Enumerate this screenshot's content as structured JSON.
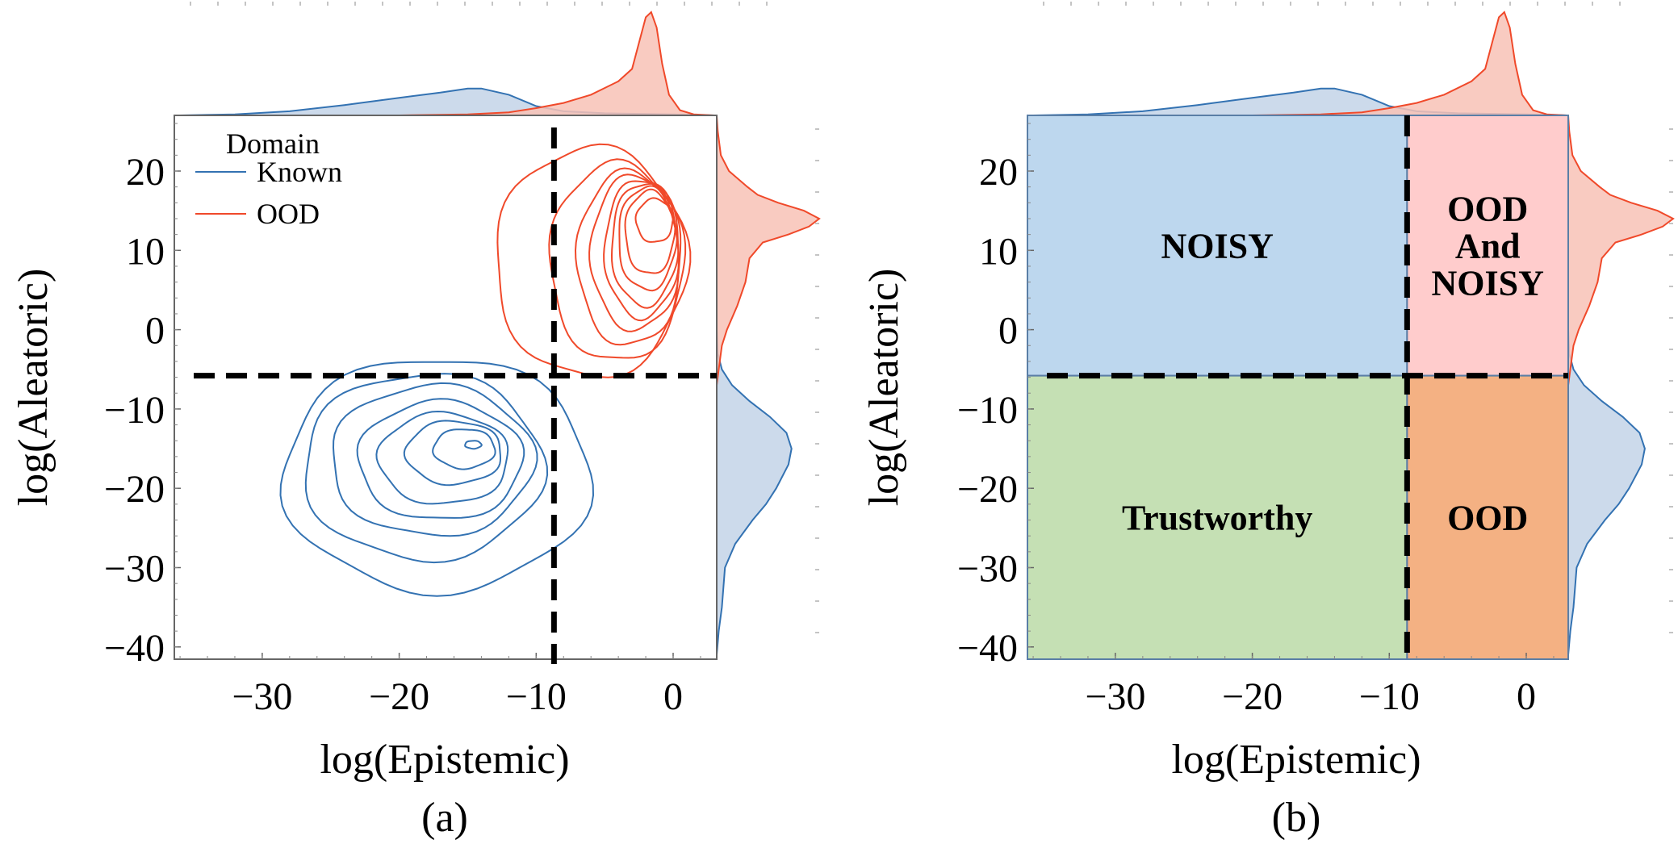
{
  "colors": {
    "known": "#3372b2",
    "known_fill": "#c3d4e8",
    "ood": "#f0492a",
    "ood_fill": "#f8c2b6",
    "threshold": "#000000",
    "region_noisy": "#bdd7ee",
    "region_ood_noisy": "#ffcccc",
    "region_trustworthy": "#c5e0b4",
    "region_ood": "#f4b183",
    "region_border": "#5a7ea6"
  },
  "chart_data": [
    {
      "type": "contour",
      "panel_label": "(a)",
      "xlabel": "log(Epistemic)",
      "ylabel": "log(Aleatoric)",
      "xlim": [
        -36.4,
        3.2
      ],
      "ylim": [
        -41.5,
        27
      ],
      "xticks": [
        -30,
        -20,
        -10,
        0
      ],
      "xtick_labels": [
        "−30",
        "−20",
        "−10",
        "0"
      ],
      "yticks": [
        20,
        10,
        0,
        -10,
        -20,
        -30,
        -40
      ],
      "ytick_labels": [
        "20",
        "10",
        "0",
        "−10",
        "−20",
        "−30",
        "−40"
      ],
      "thresholds": {
        "epistemic": -8.7,
        "aleatoric": -5.8
      },
      "legend": {
        "title": "Domain",
        "entries": [
          "Known",
          "OOD"
        ],
        "placement": "top-left"
      },
      "series": [
        {
          "name": "Known",
          "contours": [
            {
              "x": [
                -28.5,
                -6
              ],
              "y": [
                -33,
                -3.5
              ]
            },
            {
              "x": [
                -27,
                -9.5
              ],
              "y": [
                -29,
                -5.5
              ]
            },
            {
              "x": [
                -25,
                -10.2
              ],
              "y": [
                -26,
                -7
              ]
            },
            {
              "x": [
                -23,
                -11
              ],
              "y": [
                -24,
                -9
              ]
            },
            {
              "x": [
                -21.5,
                -12
              ],
              "y": [
                -22,
                -10.5
              ]
            },
            {
              "x": [
                -19.5,
                -12.5
              ],
              "y": [
                -19.5,
                -11.5
              ]
            },
            {
              "x": [
                -17.5,
                -13
              ],
              "y": [
                -17.5,
                -12.5
              ]
            },
            {
              "x": [
                -15.2,
                -14
              ],
              "y": [
                -15,
                -14
              ]
            }
          ],
          "marginal_x": {
            "x": [
              -36,
              -32,
              -28,
              -24,
              -20,
              -17,
              -15,
              -14,
              -12,
              -10,
              -8,
              -5,
              0,
              3
            ],
            "density": [
              0,
              0.01,
              0.04,
              0.1,
              0.17,
              0.22,
              0.26,
              0.26,
              0.2,
              0.09,
              0.04,
              0.02,
              0.01,
              0
            ]
          },
          "marginal_y": {
            "y": [
              -41,
              -38,
              -35,
              -30,
              -27,
              -24,
              -22,
              -20,
              -17,
              -15,
              -13,
              -11,
              -9,
              -7,
              -5,
              -3,
              0
            ],
            "density": [
              0,
              0.02,
              0.05,
              0.08,
              0.18,
              0.35,
              0.48,
              0.58,
              0.7,
              0.73,
              0.68,
              0.52,
              0.32,
              0.15,
              0.05,
              0.01,
              0
            ]
          }
        },
        {
          "name": "OOD",
          "contours": [
            {
              "x": [
                -13,
                1
              ],
              "y": [
                -6,
                23
              ]
            },
            {
              "x": [
                -9,
                0.8
              ],
              "y": [
                -4,
                21
              ]
            },
            {
              "x": [
                -7,
                0.6
              ],
              "y": [
                -2,
                20
              ]
            },
            {
              "x": [
                -6,
                0.5
              ],
              "y": [
                0,
                19.5
              ]
            },
            {
              "x": [
                -5,
                0.4
              ],
              "y": [
                1.5,
                19
              ]
            },
            {
              "x": [
                -4.5,
                0.3
              ],
              "y": [
                3,
                18.5
              ]
            },
            {
              "x": [
                -4,
                0.2
              ],
              "y": [
                5,
                18
              ]
            },
            {
              "x": [
                -3.5,
                0.1
              ],
              "y": [
                7,
                17.5
              ]
            },
            {
              "x": [
                -2.7,
                0
              ],
              "y": [
                11,
                16.5
              ]
            }
          ],
          "marginal_x": {
            "x": [
              -20,
              -15,
              -12,
              -10,
              -8,
              -6,
              -4,
              -3,
              -2.5,
              -2,
              -1.6,
              -1.2,
              -0.8,
              -0.3,
              0.5,
              1.5,
              3
            ],
            "density": [
              0,
              0.01,
              0.03,
              0.07,
              0.12,
              0.2,
              0.33,
              0.45,
              0.7,
              0.95,
              1.0,
              0.85,
              0.5,
              0.2,
              0.05,
              0.01,
              0
            ]
          },
          "marginal_y": {
            "y": [
              -7,
              -5,
              -2,
              0,
              3,
              6,
              9,
              11,
              12,
              13,
              14,
              15,
              16,
              17,
              18,
              20,
              22,
              25,
              27
            ],
            "density": [
              0,
              0.02,
              0.05,
              0.1,
              0.2,
              0.28,
              0.32,
              0.45,
              0.7,
              0.9,
              1.0,
              0.85,
              0.6,
              0.4,
              0.3,
              0.12,
              0.04,
              0.01,
              0
            ]
          }
        }
      ]
    },
    {
      "type": "region",
      "panel_label": "(b)",
      "xlabel": "log(Epistemic)",
      "ylabel": "log(Aleatoric)",
      "xlim": [
        -36.4,
        3.2
      ],
      "ylim": [
        -41.5,
        27
      ],
      "xticks": [
        -30,
        -20,
        -10,
        0
      ],
      "xtick_labels": [
        "−30",
        "−20",
        "−10",
        "0"
      ],
      "yticks": [
        20,
        10,
        0,
        -10,
        -20,
        -30,
        -40
      ],
      "ytick_labels": [
        "20",
        "10",
        "0",
        "−10",
        "−20",
        "−30",
        "−40"
      ],
      "thresholds": {
        "epistemic": -8.7,
        "aleatoric": -5.8
      },
      "regions": [
        {
          "name": "noisy",
          "lines": [
            "NOISY"
          ],
          "x_side": "low",
          "y_side": "high",
          "color_key": "region_noisy"
        },
        {
          "name": "ood-and-noisy",
          "lines": [
            "OOD",
            "And",
            "NOISY"
          ],
          "x_side": "high",
          "y_side": "high",
          "color_key": "region_ood_noisy"
        },
        {
          "name": "trustworthy",
          "lines": [
            "Trustworthy"
          ],
          "x_side": "low",
          "y_side": "low",
          "color_key": "region_trustworthy"
        },
        {
          "name": "ood",
          "lines": [
            "OOD"
          ],
          "x_side": "high",
          "y_side": "low",
          "color_key": "region_ood"
        }
      ]
    }
  ]
}
